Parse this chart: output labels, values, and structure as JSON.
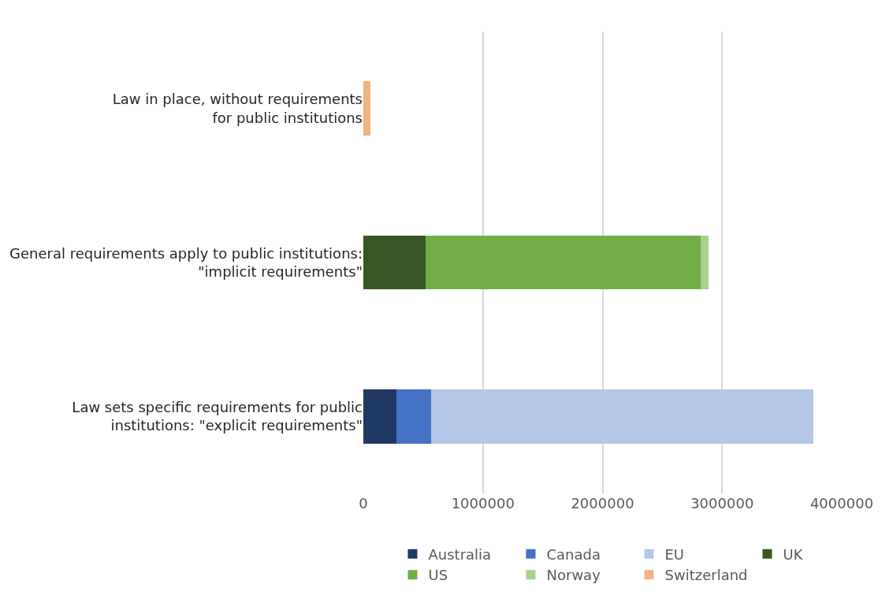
{
  "chart_data": {
    "type": "bar",
    "orientation": "horizontal",
    "stacked": true,
    "categories": [
      "Law in place, without requirements\nfor public institutions",
      "General requirements apply to public institutions:\n\"implicit requirements\"",
      "Law sets specific requirements for public\ninstitutions: \"explicit requirements\""
    ],
    "series": [
      {
        "name": "Australia",
        "color": "#203864",
        "values": [
          null,
          null,
          280000
        ]
      },
      {
        "name": "Canada",
        "color": "#4472c4",
        "values": [
          null,
          null,
          285000
        ]
      },
      {
        "name": "EU",
        "color": "#b4c7e7",
        "values": [
          null,
          null,
          3200000
        ]
      },
      {
        "name": "UK",
        "color": "#375623",
        "values": [
          null,
          520000,
          null
        ]
      },
      {
        "name": "US",
        "color": "#70ad47",
        "values": [
          null,
          2300000,
          null
        ]
      },
      {
        "name": "Norway",
        "color": "#a9d18e",
        "values": [
          null,
          65000,
          null
        ]
      },
      {
        "name": "Switzerland",
        "color": "#f4b183",
        "values": [
          60000,
          null,
          null
        ]
      }
    ],
    "xlim": [
      0,
      4000000
    ],
    "xticks": [
      0,
      1000000,
      2000000,
      3000000,
      4000000
    ],
    "grid": "x",
    "legend": "bottom"
  }
}
